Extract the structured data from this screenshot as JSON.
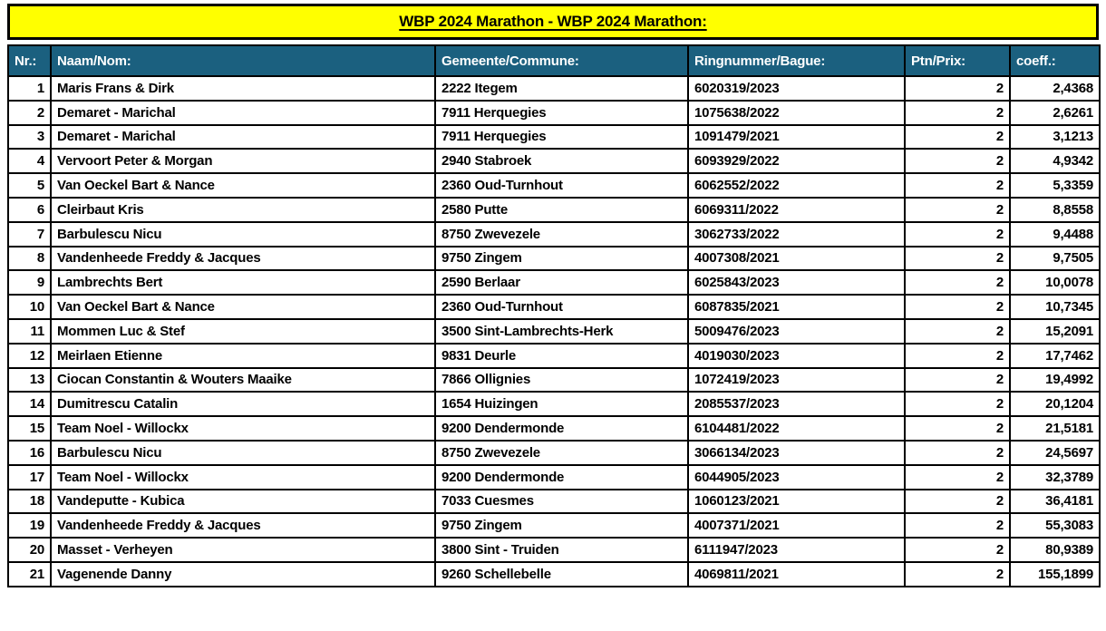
{
  "title": "WBP 2024 Marathon - WBP 2024 Marathon:",
  "colors": {
    "title_bg": "#FFFF00",
    "header_bg": "#1B607F",
    "header_text": "#FFFFFF",
    "border": "#000000",
    "row_bg": "#FFFFFF",
    "text": "#000000"
  },
  "table": {
    "columns": [
      {
        "label": "Nr.:"
      },
      {
        "label": "Naam/Nom:"
      },
      {
        "label": "Gemeente/Commune:"
      },
      {
        "label": "Ringnummer/Bague:"
      },
      {
        "label": "Ptn/Prix:"
      },
      {
        "label": "coeff.:"
      }
    ],
    "rows": [
      {
        "nr": "1",
        "name": "Maris Frans & Dirk",
        "commune": "2222 Itegem",
        "ring": "6020319/2023",
        "points": "2",
        "coeff": "2,4368"
      },
      {
        "nr": "2",
        "name": "Demaret - Marichal",
        "commune": "7911 Herquegies",
        "ring": "1075638/2022",
        "points": "2",
        "coeff": "2,6261"
      },
      {
        "nr": "3",
        "name": "Demaret - Marichal",
        "commune": "7911 Herquegies",
        "ring": "1091479/2021",
        "points": "2",
        "coeff": "3,1213"
      },
      {
        "nr": "4",
        "name": "Vervoort Peter & Morgan",
        "commune": "2940 Stabroek",
        "ring": "6093929/2022",
        "points": "2",
        "coeff": "4,9342"
      },
      {
        "nr": "5",
        "name": "Van Oeckel Bart & Nance",
        "commune": "2360 Oud-Turnhout",
        "ring": "6062552/2022",
        "points": "2",
        "coeff": "5,3359"
      },
      {
        "nr": "6",
        "name": "Cleirbaut Kris",
        "commune": "2580 Putte",
        "ring": "6069311/2022",
        "points": "2",
        "coeff": "8,8558"
      },
      {
        "nr": "7",
        "name": "Barbulescu Nicu",
        "commune": "8750 Zwevezele",
        "ring": "3062733/2022",
        "points": "2",
        "coeff": "9,4488"
      },
      {
        "nr": "8",
        "name": "Vandenheede Freddy & Jacques",
        "commune": "9750 Zingem",
        "ring": "4007308/2021",
        "points": "2",
        "coeff": "9,7505"
      },
      {
        "nr": "9",
        "name": "Lambrechts Bert",
        "commune": "2590 Berlaar",
        "ring": "6025843/2023",
        "points": "2",
        "coeff": "10,0078"
      },
      {
        "nr": "10",
        "name": "Van Oeckel Bart & Nance",
        "commune": "2360 Oud-Turnhout",
        "ring": "6087835/2021",
        "points": "2",
        "coeff": "10,7345"
      },
      {
        "nr": "11",
        "name": "Mommen Luc & Stef",
        "commune": "3500 Sint-Lambrechts-Herk",
        "ring": "5009476/2023",
        "points": "2",
        "coeff": "15,2091"
      },
      {
        "nr": "12",
        "name": "Meirlaen Etienne",
        "commune": "9831 Deurle",
        "ring": "4019030/2023",
        "points": "2",
        "coeff": "17,7462"
      },
      {
        "nr": "13",
        "name": "Ciocan Constantin & Wouters Maaike",
        "commune": "7866 Ollignies",
        "ring": "1072419/2023",
        "points": "2",
        "coeff": "19,4992"
      },
      {
        "nr": "14",
        "name": "Dumitrescu Catalin",
        "commune": "1654 Huizingen",
        "ring": "2085537/2023",
        "points": "2",
        "coeff": "20,1204"
      },
      {
        "nr": "15",
        "name": "Team Noel - Willockx",
        "commune": "9200 Dendermonde",
        "ring": "6104481/2022",
        "points": "2",
        "coeff": "21,5181"
      },
      {
        "nr": "16",
        "name": "Barbulescu Nicu",
        "commune": "8750 Zwevezele",
        "ring": "3066134/2023",
        "points": "2",
        "coeff": "24,5697"
      },
      {
        "nr": "17",
        "name": "Team Noel - Willockx",
        "commune": "9200 Dendermonde",
        "ring": "6044905/2023",
        "points": "2",
        "coeff": "32,3789"
      },
      {
        "nr": "18",
        "name": "Vandeputte - Kubica",
        "commune": "7033 Cuesmes",
        "ring": "1060123/2021",
        "points": "2",
        "coeff": "36,4181"
      },
      {
        "nr": "19",
        "name": "Vandenheede Freddy & Jacques",
        "commune": "9750 Zingem",
        "ring": "4007371/2021",
        "points": "2",
        "coeff": "55,3083"
      },
      {
        "nr": "20",
        "name": "Masset - Verheyen",
        "commune": "3800 Sint - Truiden",
        "ring": "6111947/2023",
        "points": "2",
        "coeff": "80,9389"
      },
      {
        "nr": "21",
        "name": "Vagenende Danny",
        "commune": "9260 Schellebelle",
        "ring": "4069811/2021",
        "points": "2",
        "coeff": "155,1899"
      }
    ]
  }
}
